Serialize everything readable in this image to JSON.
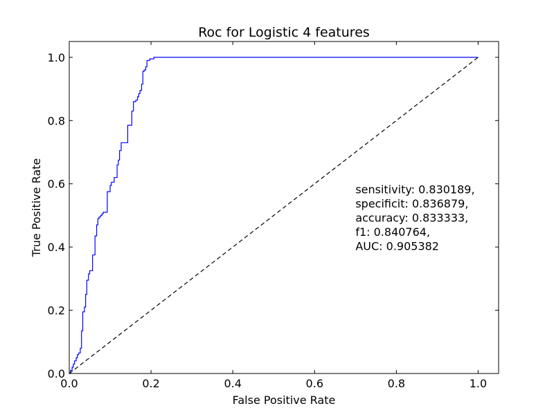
{
  "chart_data": {
    "type": "line",
    "title": "Roc for Logistic 4 features",
    "xlabel": "False Positive Rate",
    "ylabel": "True Positive Rate",
    "xlim": [
      0.0,
      1.05
    ],
    "ylim": [
      0.0,
      1.05
    ],
    "xticks": [
      0.0,
      0.2,
      0.4,
      0.6,
      0.8,
      1.0
    ],
    "yticks": [
      0.0,
      0.2,
      0.4,
      0.6,
      0.8,
      1.0
    ],
    "xtick_labels": [
      "0.0",
      "0.2",
      "0.4",
      "0.6",
      "0.8",
      "1.0"
    ],
    "ytick_labels": [
      "0.0",
      "0.2",
      "0.4",
      "0.6",
      "0.8",
      "1.0"
    ],
    "grid": false,
    "series": [
      {
        "style": "solid",
        "color": "#0000ff",
        "x": [
          0.0,
          0.003,
          0.003,
          0.007,
          0.007,
          0.01,
          0.01,
          0.013,
          0.013,
          0.017,
          0.017,
          0.02,
          0.02,
          0.023,
          0.023,
          0.027,
          0.027,
          0.03,
          0.03,
          0.033,
          0.033,
          0.037,
          0.037,
          0.04,
          0.04,
          0.043,
          0.043,
          0.047,
          0.047,
          0.05,
          0.05,
          0.057,
          0.057,
          0.063,
          0.063,
          0.067,
          0.067,
          0.07,
          0.07,
          0.073,
          0.073,
          0.077,
          0.077,
          0.08,
          0.08,
          0.083,
          0.083,
          0.087,
          0.087,
          0.093,
          0.093,
          0.1,
          0.1,
          0.103,
          0.103,
          0.11,
          0.11,
          0.117,
          0.117,
          0.12,
          0.12,
          0.123,
          0.123,
          0.127,
          0.127,
          0.137,
          0.137,
          0.143,
          0.143,
          0.153,
          0.153,
          0.157,
          0.157,
          0.163,
          0.163,
          0.167,
          0.167,
          0.17,
          0.17,
          0.173,
          0.173,
          0.177,
          0.177,
          0.18,
          0.18,
          0.183,
          0.183,
          0.187,
          0.187,
          0.19,
          0.19,
          0.193,
          0.193,
          0.197,
          0.197,
          0.203,
          0.203,
          0.207,
          0.207,
          0.213,
          0.213,
          0.22,
          0.22,
          0.223,
          0.223,
          1.0
        ],
        "y": [
          0.0,
          0.0,
          0.01,
          0.01,
          0.02,
          0.02,
          0.03,
          0.03,
          0.04,
          0.04,
          0.05,
          0.05,
          0.06,
          0.06,
          0.065,
          0.065,
          0.08,
          0.08,
          0.135,
          0.135,
          0.195,
          0.195,
          0.21,
          0.21,
          0.25,
          0.25,
          0.295,
          0.295,
          0.315,
          0.315,
          0.325,
          0.325,
          0.375,
          0.375,
          0.435,
          0.435,
          0.47,
          0.47,
          0.49,
          0.49,
          0.495,
          0.495,
          0.5,
          0.5,
          0.505,
          0.505,
          0.51,
          0.51,
          0.51,
          0.51,
          0.575,
          0.575,
          0.595,
          0.595,
          0.605,
          0.605,
          0.62,
          0.62,
          0.66,
          0.66,
          0.675,
          0.675,
          0.705,
          0.705,
          0.73,
          0.73,
          0.73,
          0.73,
          0.785,
          0.785,
          0.83,
          0.83,
          0.86,
          0.86,
          0.865,
          0.865,
          0.875,
          0.875,
          0.885,
          0.885,
          0.895,
          0.895,
          0.915,
          0.915,
          0.955,
          0.955,
          0.96,
          0.96,
          0.97,
          0.97,
          0.99,
          0.99,
          0.99,
          0.99,
          0.995,
          0.995,
          0.995,
          0.995,
          1.0,
          1.0,
          1.0,
          1.0,
          1.0,
          1.0,
          1.0,
          1.0
        ]
      },
      {
        "style": "dashed",
        "color": "#000000",
        "x": [
          0.0,
          1.0
        ],
        "y": [
          0.0,
          1.0
        ]
      }
    ],
    "annotation": {
      "lines": [
        "sensitivity: 0.830189,",
        "specificit: 0.836879,",
        "accuracy: 0.833333,",
        "f1: 0.840764,",
        "AUC: 0.905382"
      ],
      "x": 0.7,
      "y": 0.6
    }
  }
}
